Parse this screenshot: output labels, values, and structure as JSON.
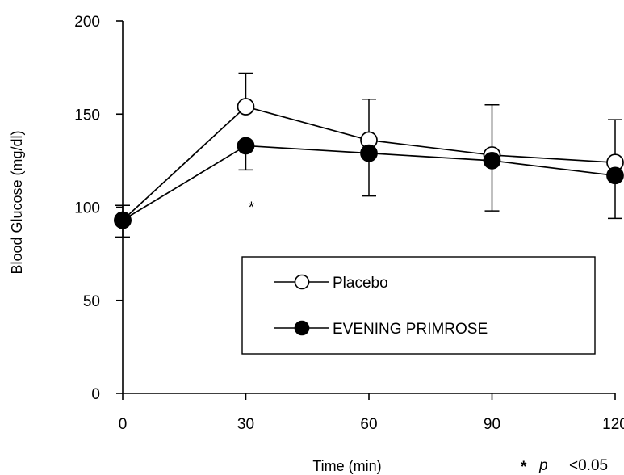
{
  "chart_data": {
    "type": "line",
    "title": "",
    "xlabel": "Time (min)",
    "ylabel": "Blood Glucose (mg/dl)",
    "x": [
      0,
      30,
      60,
      90,
      120
    ],
    "x_tick_labels": [
      "0",
      "30",
      "60",
      "90",
      "120"
    ],
    "y_tick_labels": [
      "0",
      "50",
      "100",
      "150",
      "200"
    ],
    "xlim": [
      0,
      120
    ],
    "ylim": [
      0,
      200
    ],
    "grid": false,
    "legend_position": "lower-right",
    "series": [
      {
        "name": "Placebo",
        "marker": "open-circle",
        "values": [
          93,
          154,
          136,
          128,
          124
        ],
        "error_upper": [
          null,
          172,
          158,
          155,
          147
        ],
        "error_lower": [
          null,
          null,
          null,
          null,
          null
        ]
      },
      {
        "name": "EVENING PRIMROSE",
        "marker": "filled-circle",
        "values": [
          93,
          133,
          129,
          125,
          117
        ],
        "error_upper": [
          101,
          null,
          null,
          null,
          null
        ],
        "error_lower": [
          84,
          120,
          106,
          98,
          94
        ]
      }
    ],
    "annotations": [
      {
        "text": "*",
        "x": 30,
        "y": 105
      }
    ],
    "significance_note": {
      "star": "*",
      "p": "p",
      "threshold": "<0.05"
    },
    "colors": {
      "line": "#000000",
      "open_fill": "#ffffff",
      "filled_fill": "#000000"
    }
  }
}
